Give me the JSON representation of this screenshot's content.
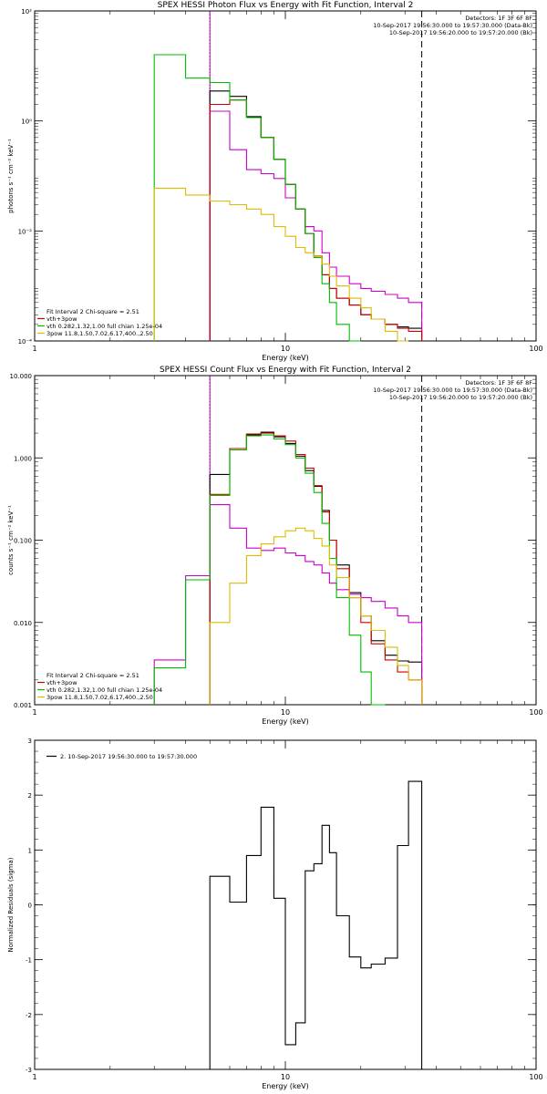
{
  "chart_data": [
    {
      "type": "line",
      "title": "SPEX HESSI Photon Flux vs Energy with Fit Function, Interval 2",
      "xlabel": "Energy (keV)",
      "ylabel": "photons s⁻¹ cm⁻² keV⁻¹",
      "xscale": "log",
      "yscale": "log",
      "xlim": [
        1,
        100
      ],
      "ylim": [
        0.0001,
        100
      ],
      "x_ticks": [
        "1",
        "10",
        "100"
      ],
      "y_ticks": [
        {
          "value": 0.0001,
          "label": "10⁻⁴"
        },
        {
          "value": 0.01,
          "label": "10⁻²"
        },
        {
          "value": 1,
          "label": "10⁰"
        },
        {
          "value": 100,
          "label": "10²"
        }
      ],
      "info_lines": [
        {
          "text": "Detectors: 1F 3F 6F 8F",
          "color": "#000000"
        },
        {
          "text": "10-Sep-2017 19:56:30.000 to 19:57:30.000 (Data-Bk)",
          "color": "#000000"
        },
        {
          "text": "10-Sep-2017 19:56:20.000 to 19:57:20.000 (Bk)",
          "color": "#cc00cc"
        }
      ],
      "legend_lines": [
        {
          "text": "Fit Interval  2   Chi-square = 2.51",
          "color": "#000000"
        },
        {
          "text": "vth+3pow",
          "color": "#cc0000"
        },
        {
          "text": "vth 0.282,1.32,1.00  full chian 1.25e-04",
          "color": "#00bb00"
        },
        {
          "text": "3pow 11.8,1.50,7.02,6.17,400.,2.50",
          "color": "#ddbb00"
        }
      ],
      "vlines": [
        {
          "x": 5.0,
          "style": "dotted",
          "color": "#000000"
        },
        {
          "x": 5.0,
          "style": "solid",
          "color": "#cc00cc"
        },
        {
          "x": 35.0,
          "style": "dashed",
          "color": "#000000"
        }
      ],
      "bin_edges": [
        3,
        4,
        5,
        6,
        7,
        8,
        9,
        10,
        11,
        12,
        13,
        14,
        15,
        16,
        18,
        20,
        22,
        25,
        28,
        31,
        35
      ],
      "series": [
        {
          "name": "",
          "color": "#000000",
          "values": [
            null,
            null,
            3.5,
            2.8,
            1.2,
            0.5,
            0.2,
            0.07,
            0.025,
            0.009,
            0.0035,
            0.0016,
            0.0009,
            0.0006,
            0.00045,
            0.0003,
            0.00025,
            0.0002,
            0.00018,
            0.00017
          ]
        },
        {
          "name": "",
          "color": "#cc00cc",
          "values": [
            null,
            null,
            1.5,
            0.3,
            0.13,
            0.11,
            0.09,
            0.04,
            0.025,
            0.012,
            0.01,
            0.004,
            0.0022,
            0.0015,
            0.0011,
            0.0009,
            0.0008,
            0.0007,
            0.0006,
            0.0005
          ]
        },
        {
          "name": "",
          "color": "#cc0000",
          "values": [
            null,
            null,
            2.0,
            2.4,
            1.15,
            0.5,
            0.2,
            0.07,
            0.025,
            0.009,
            0.0035,
            0.0016,
            0.0009,
            0.0006,
            0.00045,
            0.0003,
            0.00025,
            0.0002,
            0.00017,
            0.00015
          ]
        },
        {
          "name": "",
          "color": "#00bb00",
          "values": [
            16,
            6,
            5,
            2.4,
            1.15,
            0.5,
            0.2,
            0.07,
            0.025,
            0.009,
            0.0033,
            0.0011,
            0.0005,
            0.0002,
            0.0001,
            null,
            null,
            null,
            null,
            null
          ]
        },
        {
          "name": "",
          "color": "#ddbb00",
          "values": [
            0.06,
            0.045,
            0.035,
            0.03,
            0.025,
            0.02,
            0.012,
            0.008,
            0.005,
            0.004,
            0.0035,
            0.0025,
            0.0015,
            0.001,
            0.0006,
            0.0004,
            0.00025,
            0.00015,
            0.0001,
            null
          ]
        }
      ]
    },
    {
      "type": "line",
      "title": "SPEX HESSI Count Flux vs Energy with Fit Function, Interval 2",
      "xlabel": "Energy (keV)",
      "ylabel": "counts s⁻¹ cm⁻² keV⁻¹",
      "xscale": "log",
      "yscale": "log",
      "xlim": [
        1,
        100
      ],
      "ylim": [
        0.001,
        10
      ],
      "x_ticks": [
        "1",
        "10",
        "100"
      ],
      "y_ticks": [
        {
          "value": 0.001,
          "label": "0.001"
        },
        {
          "value": 0.01,
          "label": "0.010"
        },
        {
          "value": 0.1,
          "label": "0.100"
        },
        {
          "value": 1,
          "label": "1.000"
        },
        {
          "value": 10,
          "label": "10.000"
        }
      ],
      "info_lines": [
        {
          "text": "Detectors: 1F 3F 6F 8F",
          "color": "#000000"
        },
        {
          "text": "10-Sep-2017 19:56:30.000 to 19:57:30.000 (Data-Bk)",
          "color": "#000000"
        },
        {
          "text": "10-Sep-2017 19:56:20.000 to 19:57:20.000 (Bk)",
          "color": "#cc00cc"
        }
      ],
      "legend_lines": [
        {
          "text": "Fit Interval  2   Chi-square = 2.51",
          "color": "#000000"
        },
        {
          "text": "vth+3pow",
          "color": "#cc0000"
        },
        {
          "text": "vth 0.282,1.32,1.00  full chian 1.25e-04",
          "color": "#00bb00"
        },
        {
          "text": "3pow 11.8,1.50,7.02,6.17,400.,2.50",
          "color": "#ddbb00"
        }
      ],
      "vlines": [
        {
          "x": 5.0,
          "style": "dotted",
          "color": "#000000"
        },
        {
          "x": 5.0,
          "style": "solid",
          "color": "#cc00cc"
        },
        {
          "x": 35.0,
          "style": "dashed",
          "color": "#000000"
        }
      ],
      "bin_edges": [
        3,
        4,
        5,
        6,
        7,
        8,
        9,
        10,
        11,
        12,
        13,
        14,
        15,
        16,
        18,
        20,
        22,
        25,
        28,
        31,
        35
      ],
      "series": [
        {
          "name": "",
          "color": "#000000",
          "values": [
            null,
            null,
            0.63,
            1.3,
            1.9,
            2.05,
            1.8,
            1.5,
            1.05,
            0.7,
            0.45,
            0.23,
            0.1,
            0.05,
            0.023,
            0.012,
            0.006,
            0.004,
            0.0034,
            0.0033
          ]
        },
        {
          "name": "",
          "color": "#cc00cc",
          "values": [
            0.0035,
            0.037,
            0.27,
            0.14,
            0.08,
            0.075,
            0.08,
            0.07,
            0.065,
            0.055,
            0.05,
            0.04,
            0.03,
            0.025,
            0.022,
            0.02,
            0.018,
            0.015,
            0.012,
            0.01
          ]
        },
        {
          "name": "",
          "color": "#cc0000",
          "values": [
            null,
            null,
            0.36,
            1.3,
            1.95,
            2.0,
            1.85,
            1.6,
            1.1,
            0.75,
            0.46,
            0.22,
            0.1,
            0.045,
            0.02,
            0.01,
            0.0055,
            0.0035,
            0.0025,
            0.002
          ]
        },
        {
          "name": "",
          "color": "#00bb00",
          "values": [
            0.0028,
            0.033,
            0.35,
            1.25,
            1.85,
            1.9,
            1.7,
            1.45,
            1.0,
            0.65,
            0.38,
            0.16,
            0.06,
            0.02,
            0.007,
            0.0025,
            0.001,
            null,
            null,
            null
          ]
        },
        {
          "name": "",
          "color": "#ddbb00",
          "values": [
            null,
            null,
            0.01,
            0.03,
            0.065,
            0.09,
            0.11,
            0.13,
            0.14,
            0.13,
            0.105,
            0.085,
            0.05,
            0.035,
            0.02,
            0.012,
            0.008,
            0.005,
            0.003,
            0.002
          ]
        }
      ]
    },
    {
      "type": "line",
      "title": "",
      "xlabel": "Energy (keV)",
      "ylabel": "Normalized Residuals (sigma)",
      "xscale": "log",
      "yscale": "linear",
      "xlim": [
        1,
        100
      ],
      "ylim": [
        -3,
        3
      ],
      "x_ticks": [
        "1",
        "10",
        "100"
      ],
      "y_ticks": [
        {
          "value": -3,
          "label": "-3"
        },
        {
          "value": -2,
          "label": "-2"
        },
        {
          "value": -1,
          "label": "-1"
        },
        {
          "value": 0,
          "label": "0"
        },
        {
          "value": 1,
          "label": "1"
        },
        {
          "value": 2,
          "label": "2"
        },
        {
          "value": 3,
          "label": "3"
        }
      ],
      "info_lines": [],
      "legend_lines": [
        {
          "text": "2. 10-Sep-2017 19:56:30.000 to 19:57:30.000",
          "color": "#000000",
          "swatch": true
        }
      ],
      "vlines": [],
      "bin_edges": [
        5,
        6,
        7,
        8,
        9,
        10,
        11,
        12,
        13,
        14,
        15,
        16,
        18,
        20,
        22,
        25,
        28,
        31,
        35
      ],
      "series": [
        {
          "name": "",
          "color": "#000000",
          "values": [
            0.52,
            0.05,
            0.9,
            1.78,
            0.12,
            -2.55,
            -2.15,
            0.62,
            0.75,
            1.45,
            0.95,
            -0.2,
            -0.95,
            -1.15,
            -1.08,
            -0.97,
            1.08,
            2.25
          ]
        }
      ],
      "drop_to_bottom": true
    }
  ]
}
